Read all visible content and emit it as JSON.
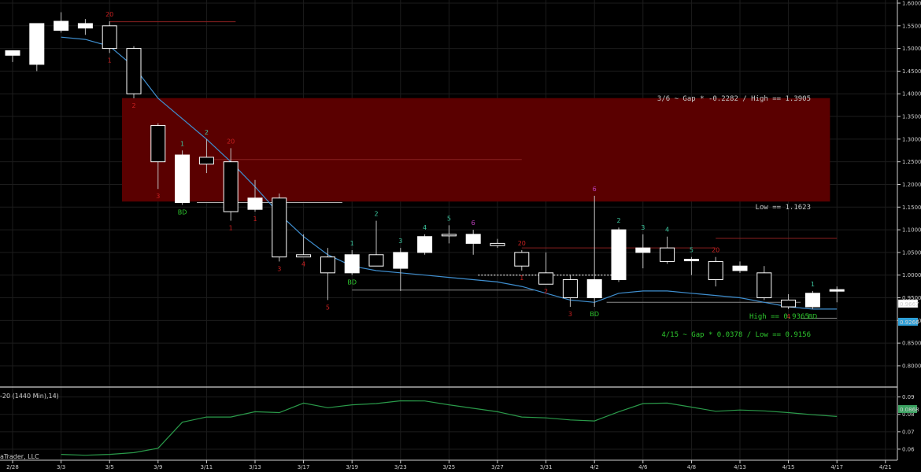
{
  "chart_data": {
    "type": "candlestick",
    "price_axis": {
      "ylim": [
        0.76,
        1.6
      ],
      "ticks": [
        "0.8000",
        "0.8500",
        "0.9000",
        "0.9500",
        "1.0000",
        "1.0500",
        "1.1000",
        "1.1500",
        "1.2000",
        "1.2500",
        "1.3000",
        "1.3500",
        "1.4000",
        "1.4500",
        "1.5000",
        "1.5500",
        "1.6000"
      ],
      "last_price": "0.9667",
      "ma_value": "0.9266"
    },
    "x_axis": {
      "tick_labels": [
        "2/28",
        "3/3",
        "3/5",
        "3/9",
        "3/11",
        "3/13",
        "3/17",
        "3/19",
        "3/23",
        "3/25",
        "3/27",
        "3/31",
        "4/2",
        "4/6",
        "4/8",
        "4/13",
        "4/15",
        "4/17",
        "4/21"
      ]
    },
    "candles": [
      {
        "o": 1.485,
        "h": 1.495,
        "l": 1.47,
        "c": 1.495
      },
      {
        "o": 1.465,
        "h": 1.555,
        "l": 1.45,
        "c": 1.555
      },
      {
        "o": 1.54,
        "h": 1.58,
        "l": 1.535,
        "c": 1.56
      },
      {
        "o": 1.545,
        "h": 1.565,
        "l": 1.53,
        "c": 1.555
      },
      {
        "o": 1.55,
        "h": 1.56,
        "l": 1.49,
        "c": 1.5
      },
      {
        "o": 1.5,
        "h": 1.505,
        "l": 1.39,
        "c": 1.4
      },
      {
        "o": 1.33,
        "h": 1.335,
        "l": 1.19,
        "c": 1.25
      },
      {
        "o": 1.16,
        "h": 1.275,
        "l": 1.155,
        "c": 1.265
      },
      {
        "o": 1.26,
        "h": 1.3,
        "l": 1.225,
        "c": 1.245
      },
      {
        "o": 1.25,
        "h": 1.28,
        "l": 1.12,
        "c": 1.14
      },
      {
        "o": 1.145,
        "h": 1.21,
        "l": 1.14,
        "c": 1.17
      },
      {
        "o": 1.17,
        "h": 1.18,
        "l": 1.03,
        "c": 1.04
      },
      {
        "o": 1.045,
        "h": 1.09,
        "l": 1.04,
        "c": 1.04
      },
      {
        "o": 1.04,
        "h": 1.06,
        "l": 0.945,
        "c": 1.005
      },
      {
        "o": 1.005,
        "h": 1.055,
        "l": 1.0,
        "c": 1.045
      },
      {
        "o": 1.045,
        "h": 1.12,
        "l": 1.02,
        "c": 1.02
      },
      {
        "o": 1.015,
        "h": 1.06,
        "l": 0.965,
        "c": 1.05
      },
      {
        "o": 1.05,
        "h": 1.09,
        "l": 1.045,
        "c": 1.085
      },
      {
        "o": 1.09,
        "h": 1.11,
        "l": 1.07,
        "c": 1.088
      },
      {
        "o": 1.07,
        "h": 1.1,
        "l": 1.045,
        "c": 1.09
      },
      {
        "o": 1.07,
        "h": 1.08,
        "l": 1.06,
        "c": 1.065
      },
      {
        "o": 1.05,
        "h": 1.055,
        "l": 1.01,
        "c": 1.02
      },
      {
        "o": 1.005,
        "h": 1.05,
        "l": 0.98,
        "c": 0.98
      },
      {
        "o": 0.99,
        "h": 1.0,
        "l": 0.93,
        "c": 0.95
      },
      {
        "o": 0.95,
        "h": 1.175,
        "l": 0.93,
        "c": 0.99
      },
      {
        "o": 0.99,
        "h": 1.105,
        "l": 0.985,
        "c": 1.1
      },
      {
        "o": 1.05,
        "h": 1.09,
        "l": 1.015,
        "c": 1.06
      },
      {
        "o": 1.06,
        "h": 1.085,
        "l": 1.025,
        "c": 1.03
      },
      {
        "o": 1.035,
        "h": 1.04,
        "l": 1.0,
        "c": 1.035
      },
      {
        "o": 1.03,
        "h": 1.04,
        "l": 0.975,
        "c": 0.99
      },
      {
        "o": 1.01,
        "h": 1.03,
        "l": 1.005,
        "c": 1.02
      },
      {
        "o": 1.005,
        "h": 1.02,
        "l": 0.945,
        "c": 0.95
      },
      {
        "o": 0.945,
        "h": 0.958,
        "l": 0.925,
        "c": 0.93
      },
      {
        "o": 0.93,
        "h": 0.965,
        "l": 0.925,
        "c": 0.96
      },
      {
        "o": 0.965,
        "h": 0.975,
        "l": 0.94,
        "c": 0.968
      }
    ],
    "moving_average": [
      null,
      null,
      1.525,
      1.52,
      1.505,
      1.46,
      1.39,
      1.345,
      1.3,
      1.25,
      1.195,
      1.135,
      1.085,
      1.045,
      1.02,
      1.01,
      1.005,
      1.0,
      0.995,
      0.99,
      0.985,
      0.975,
      0.96,
      0.945,
      0.94,
      0.96,
      0.965,
      0.965,
      0.96,
      0.955,
      0.95,
      0.94,
      0.93,
      0.925,
      0.925
    ],
    "gap_zone": {
      "low": 1.1623,
      "high": 1.3905,
      "from_index": 5,
      "to_index": 33
    },
    "horizontal_lines": [
      {
        "y": 1.559,
        "from": 4,
        "to": 9.2,
        "color": "#8a2020"
      },
      {
        "y": 1.255,
        "from": 8.2,
        "to": 21,
        "color": "#8a2020"
      },
      {
        "y": 1.16,
        "from": 7.6,
        "to": 13.6,
        "color": "#b0b0b0"
      },
      {
        "y": 1.06,
        "from": 21,
        "to": 29,
        "color": "#8a2020"
      },
      {
        "y": 1.081,
        "from": 29,
        "to": 34,
        "color": "#8a2020"
      },
      {
        "y": 0.967,
        "from": 14,
        "to": 21.5,
        "color": "#8a8a8a"
      },
      {
        "y": 0.94,
        "from": 24.5,
        "to": 32.5,
        "color": "#8a8a8a"
      },
      {
        "y": 1.0,
        "from": 19.2,
        "to": 25,
        "color": "#d0d0d0",
        "dash": true
      },
      {
        "y": 0.905,
        "from": 32.5,
        "to": 34,
        "color": "#8a8a8a"
      }
    ],
    "annotations": [
      {
        "text": "3/6 ~ Gap * -0.2282 / High == 1.3905",
        "color": "#c8c8c8"
      },
      {
        "text": "Low == 1.1623",
        "color": "#c8c8c8"
      },
      {
        "text": "High == 0.9365",
        "color": "#2ec82e"
      },
      {
        "text": "4/15 ~ Gap * 0.0378 / Low == 0.9156",
        "color": "#2ec82e"
      }
    ],
    "count_labels": [
      {
        "i": 4,
        "t": "20",
        "c": "#cc2020",
        "pos": "above"
      },
      {
        "i": 4,
        "t": "1",
        "c": "#cc2020",
        "pos": "below"
      },
      {
        "i": 5,
        "t": "2",
        "c": "#cc2020",
        "pos": "below"
      },
      {
        "i": 6,
        "t": "3",
        "c": "#cc2020",
        "pos": "below"
      },
      {
        "i": 7,
        "t": "1",
        "c": "#3cc8a0",
        "pos": "above"
      },
      {
        "i": 7,
        "t": "BD",
        "c": "#2ec82e",
        "pos": "below"
      },
      {
        "i": 8,
        "t": "2",
        "c": "#3cc8a0",
        "pos": "above"
      },
      {
        "i": 9,
        "t": "20",
        "c": "#cc2020",
        "pos": "above"
      },
      {
        "i": 9,
        "t": "1",
        "c": "#cc2020",
        "pos": "below"
      },
      {
        "i": 10,
        "t": "1",
        "c": "#cc2020",
        "pos": "below"
      },
      {
        "i": 11,
        "t": "3",
        "c": "#cc2020",
        "pos": "below"
      },
      {
        "i": 12,
        "t": "4",
        "c": "#cc2020",
        "pos": "below"
      },
      {
        "i": 13,
        "t": "5",
        "c": "#cc2020",
        "pos": "below"
      },
      {
        "i": 14,
        "t": "1",
        "c": "#3cc8a0",
        "pos": "above"
      },
      {
        "i": 14,
        "t": "BD",
        "c": "#2ec82e",
        "pos": "below"
      },
      {
        "i": 15,
        "t": "2",
        "c": "#3cc8a0",
        "pos": "above"
      },
      {
        "i": 16,
        "t": "3",
        "c": "#3cc8a0",
        "pos": "above"
      },
      {
        "i": 17,
        "t": "4",
        "c": "#3cc8a0",
        "pos": "above"
      },
      {
        "i": 18,
        "t": "5",
        "c": "#3cc8a0",
        "pos": "above"
      },
      {
        "i": 19,
        "t": "6",
        "c": "#c040c0",
        "pos": "above"
      },
      {
        "i": 21,
        "t": "20",
        "c": "#cc2020",
        "pos": "above"
      },
      {
        "i": 21,
        "t": "1",
        "c": "#cc2020",
        "pos": "below"
      },
      {
        "i": 22,
        "t": "2",
        "c": "#cc2020",
        "pos": "below"
      },
      {
        "i": 23,
        "t": "3",
        "c": "#cc2020",
        "pos": "below"
      },
      {
        "i": 24,
        "t": "BD",
        "c": "#2ec82e",
        "pos": "below"
      },
      {
        "i": 24,
        "t": "6",
        "c": "#c040c0",
        "pos": "above"
      },
      {
        "i": 25,
        "t": "2",
        "c": "#3cc8a0",
        "pos": "above"
      },
      {
        "i": 26,
        "t": "3",
        "c": "#3cc8a0",
        "pos": "above"
      },
      {
        "i": 27,
        "t": "4",
        "c": "#3cc8a0",
        "pos": "above"
      },
      {
        "i": 28,
        "t": "5",
        "c": "#3cc8a0",
        "pos": "above"
      },
      {
        "i": 29,
        "t": "20",
        "c": "#cc2020",
        "pos": "above"
      },
      {
        "i": 32,
        "t": "4",
        "c": "#cc2020",
        "pos": "below"
      },
      {
        "i": 33,
        "t": "1",
        "c": "#3cc8a0",
        "pos": "above"
      },
      {
        "i": 33,
        "t": "BD",
        "c": "#2ec82e",
        "pos": "below"
      }
    ],
    "indicator": {
      "title": "-20 (1440 Min),14)",
      "ylim": [
        0.055,
        0.093
      ],
      "ticks": [
        "0.09",
        "0.08",
        "0.07",
        "0.06"
      ],
      "last_value": "0.0868",
      "values": [
        0.057,
        0.0565,
        0.057,
        0.058,
        0.0605,
        0.0755,
        0.0785,
        0.0785,
        0.0815,
        0.081,
        0.0865,
        0.0838,
        0.0855,
        0.0862,
        0.0878,
        0.0877,
        0.0855,
        0.0835,
        0.0815,
        0.0785,
        0.078,
        0.0768,
        0.0762,
        0.0815,
        0.0862,
        0.0865,
        0.0842,
        0.0818,
        0.0825,
        0.082,
        0.081,
        0.0798,
        0.0788
      ]
    },
    "colors": {
      "background": "#000000",
      "grid": "#1c1c1c",
      "candle_body": "#ffffff",
      "ma_line": "#3f8fd0",
      "gap_zone": "#5a0000",
      "indicator_line": "#2a9a4a"
    }
  },
  "copyright": "aTrader, LLC"
}
